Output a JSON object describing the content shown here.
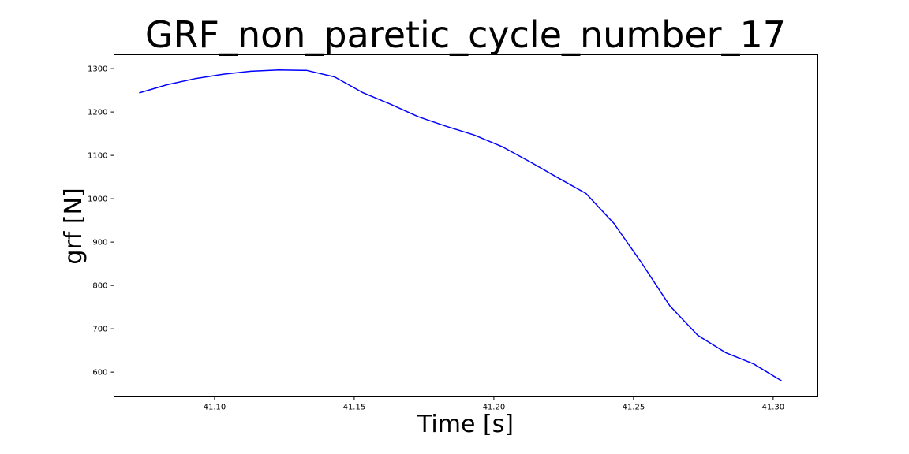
{
  "chart_data": {
    "type": "line",
    "title": "GRF_non_paretic_cycle_number_17",
    "xlabel": "Time [s]",
    "ylabel": "grf [N]",
    "xlim": [
      41.064,
      41.316
    ],
    "ylim": [
      543,
      1332
    ],
    "xticks": [
      41.1,
      41.15,
      41.2,
      41.25,
      41.3
    ],
    "xtick_labels": [
      "41.10",
      "41.15",
      "41.20",
      "41.25",
      "41.30"
    ],
    "yticks": [
      600,
      700,
      800,
      900,
      1000,
      1100,
      1200,
      1300
    ],
    "ytick_labels": [
      "600",
      "700",
      "800",
      "900",
      "1000",
      "1100",
      "1200",
      "1300"
    ],
    "grid": false,
    "series": [
      {
        "color": "#0000ff",
        "x": [
          41.073,
          41.083,
          41.093,
          41.103,
          41.113,
          41.123,
          41.133,
          41.143,
          41.153,
          41.163,
          41.173,
          41.183,
          41.193,
          41.203,
          41.213,
          41.223,
          41.233,
          41.243,
          41.253,
          41.263,
          41.273,
          41.283,
          41.293,
          41.303
        ],
        "y": [
          1244,
          1263,
          1277,
          1287,
          1294,
          1297,
          1296,
          1281,
          1245,
          1218,
          1189,
          1167,
          1147,
          1120,
          1085,
          1048,
          1012,
          943,
          851,
          753,
          685,
          645,
          619,
          580
        ]
      }
    ]
  }
}
